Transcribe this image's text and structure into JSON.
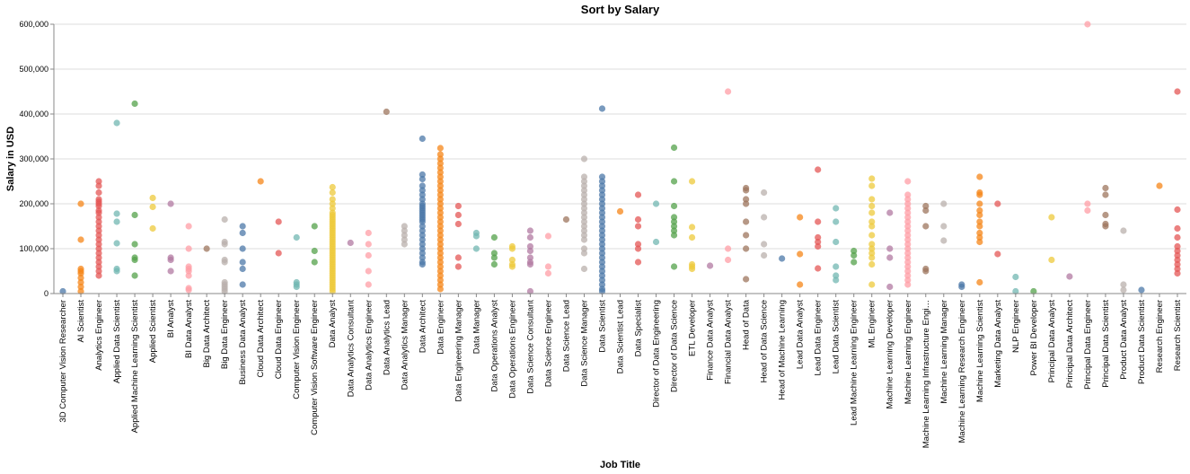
{
  "chart_data": {
    "type": "scatter",
    "title": "Sort by Salary",
    "xlabel": "Job Title",
    "ylabel": "Salary in USD",
    "ylim": [
      0,
      600000
    ],
    "yticks": [
      0,
      100000,
      200000,
      300000,
      400000,
      500000,
      600000
    ],
    "ytick_labels": [
      "0",
      "100,000",
      "200,000",
      "300,000",
      "400,000",
      "500,000",
      "600,000"
    ],
    "grid": true,
    "legend": "none",
    "categories": [
      "3D Computer Vision Researcher",
      "AI Scientist",
      "Analytics Engineer",
      "Applied Data Scientist",
      "Applied Machine Learning Scientist",
      "Applied Scientist",
      "BI Analyst",
      "BI Data Analyst",
      "Big Data Architect",
      "Big Data Engineer",
      "Business Data Analyst",
      "Cloud Data Architect",
      "Cloud Data Engineer",
      "Computer Vision Engineer",
      "Computer Vision Software Engineer",
      "Data Analyst",
      "Data Analytics Consultant",
      "Data Analytics Engineer",
      "Data Analytics Lead",
      "Data Analytics Manager",
      "Data Architect",
      "Data Engineer",
      "Data Engineering Manager",
      "Data Manager",
      "Data Operations Analyst",
      "Data Operations Engineer",
      "Data Science Consultant",
      "Data Science Engineer",
      "Data Science Lead",
      "Data Science Manager",
      "Data Scientist",
      "Data Scientist Lead",
      "Data Specialist",
      "Director of Data Engineering",
      "Director of Data Science",
      "ETL Developer",
      "Finance Data Analyst",
      "Financial Data Analyst",
      "Head of Data",
      "Head of Data Science",
      "Head of Machine Learning",
      "Lead Data Analyst",
      "Lead Data Engineer",
      "Lead Data Scientist",
      "Lead Machine Learning Engineer",
      "ML Engineer",
      "Machine Learning Developer",
      "Machine Learning Engineer",
      "Machine Learning Infrastructure Engi…",
      "Machine Learning Manager",
      "Machine Learning Research Engineer",
      "Machine Learning Scientist",
      "Marketing Data Analyst",
      "NLP Engineer",
      "Power BI Developer",
      "Principal Data Analyst",
      "Principal Data Architect",
      "Principal Data Engineer",
      "Principal Data Scientist",
      "Product Data Analyst",
      "Product Data Scientist",
      "Research Engineer",
      "Research Scientist"
    ],
    "colors": [
      "#4c78a8",
      "#f58518",
      "#e45756",
      "#72b7b2",
      "#54a24b",
      "#eeca3b",
      "#b279a2",
      "#ff9da6",
      "#9d755d",
      "#bab0ac"
    ],
    "points": [
      [
        5000
      ],
      [
        200000,
        120000,
        55000,
        50000,
        45000,
        35000,
        25000,
        15000,
        5000
      ],
      [
        250000,
        240000,
        225000,
        210000,
        205000,
        200000,
        195000,
        185000,
        180000,
        170000,
        160000,
        150000,
        140000,
        130000,
        120000,
        110000,
        100000,
        90000,
        80000,
        70000,
        60000,
        50000,
        40000
      ],
      [
        380000,
        178000,
        160000,
        112000,
        55000,
        50000
      ],
      [
        423000,
        175000,
        110000,
        80000,
        75000,
        40000
      ],
      [
        213000,
        193000,
        145000
      ],
      [
        200000,
        80000,
        75000,
        50000
      ],
      [
        150000,
        100000,
        60000,
        55000,
        50000,
        40000,
        12000,
        8000
      ],
      [
        100000
      ],
      [
        165000,
        115000,
        110000,
        75000,
        70000,
        25000,
        20000,
        15000,
        10000,
        5000
      ],
      [
        150000,
        135000,
        100000,
        70000,
        55000,
        20000
      ],
      [
        250000
      ],
      [
        160000,
        90000
      ],
      [
        125000,
        25000,
        20000,
        15000
      ],
      [
        150000,
        95000,
        70000
      ],
      [
        237000,
        225000,
        210000,
        200000,
        190000,
        180000,
        175000,
        170000,
        165000,
        160000,
        155000,
        150000,
        145000,
        140000,
        135000,
        130000,
        125000,
        120000,
        115000,
        110000,
        105000,
        100000,
        95000,
        90000,
        85000,
        80000,
        75000,
        70000,
        65000,
        60000,
        55000,
        50000,
        45000,
        40000,
        35000,
        30000,
        25000,
        20000,
        15000,
        10000,
        5000
      ],
      [
        113000
      ],
      [
        135000,
        110000,
        85000,
        50000,
        20000
      ],
      [
        405000
      ],
      [
        150000,
        140000,
        130000,
        120000,
        110000
      ],
      [
        345000,
        265000,
        255000,
        240000,
        230000,
        220000,
        210000,
        200000,
        195000,
        190000,
        185000,
        180000,
        175000,
        170000,
        165000,
        160000,
        150000,
        140000,
        130000,
        120000,
        110000,
        100000,
        90000,
        80000,
        70000,
        65000
      ],
      [
        324000,
        310000,
        300000,
        290000,
        280000,
        270000,
        260000,
        250000,
        240000,
        230000,
        220000,
        210000,
        200000,
        190000,
        180000,
        170000,
        160000,
        150000,
        140000,
        130000,
        120000,
        110000,
        100000,
        90000,
        80000,
        70000,
        60000,
        50000,
        40000,
        30000,
        20000,
        10000
      ],
      [
        195000,
        175000,
        155000,
        80000,
        60000
      ],
      [
        135000,
        128000,
        100000
      ],
      [
        125000,
        90000,
        80000,
        65000
      ],
      [
        105000,
        100000,
        75000,
        65000,
        60000
      ],
      [
        140000,
        125000,
        105000,
        95000,
        80000,
        70000,
        65000,
        5000
      ],
      [
        128000,
        60000,
        45000
      ],
      [
        165000
      ],
      [
        300000,
        260000,
        250000,
        240000,
        230000,
        220000,
        210000,
        200000,
        190000,
        180000,
        170000,
        160000,
        150000,
        140000,
        130000,
        120000,
        100000,
        90000,
        55000
      ],
      [
        412000,
        260000,
        250000,
        240000,
        230000,
        220000,
        210000,
        200000,
        190000,
        180000,
        170000,
        160000,
        150000,
        140000,
        130000,
        120000,
        110000,
        100000,
        90000,
        80000,
        70000,
        60000,
        50000,
        40000,
        30000,
        20000,
        10000,
        5000
      ],
      [
        183000
      ],
      [
        220000,
        165000,
        150000,
        110000,
        100000,
        70000
      ],
      [
        200000,
        115000
      ],
      [
        325000,
        250000,
        195000,
        170000,
        160000,
        150000,
        140000,
        130000,
        60000
      ],
      [
        250000,
        148000,
        125000,
        65000,
        60000,
        55000
      ],
      [
        62000
      ],
      [
        450000,
        100000,
        75000
      ],
      [
        235000,
        230000,
        210000,
        200000,
        160000,
        130000,
        100000,
        32000
      ],
      [
        225000,
        170000,
        110000,
        85000
      ],
      [
        78000
      ],
      [
        170000,
        88000,
        20000
      ],
      [
        276000,
        160000,
        125000,
        115000,
        105000,
        56000
      ],
      [
        190000,
        160000,
        115000,
        60000,
        40000,
        30000
      ],
      [
        95000,
        85000,
        70000
      ],
      [
        256000,
        240000,
        210000,
        195000,
        180000,
        160000,
        150000,
        130000,
        110000,
        100000,
        90000,
        80000,
        65000,
        20000
      ],
      [
        180000,
        100000,
        80000,
        15000
      ],
      [
        250000,
        220000,
        210000,
        200000,
        190000,
        180000,
        170000,
        160000,
        150000,
        140000,
        130000,
        120000,
        110000,
        100000,
        90000,
        80000,
        70000,
        60000,
        50000,
        40000,
        30000,
        20000
      ],
      [
        195000,
        185000,
        150000,
        55000,
        50000
      ],
      [
        200000,
        150000,
        118000
      ],
      [
        20000,
        15000
      ],
      [
        260000,
        225000,
        220000,
        200000,
        185000,
        175000,
        160000,
        150000,
        135000,
        125000,
        115000,
        25000
      ],
      [
        200000,
        88000
      ],
      [
        37000,
        5000
      ],
      [
        5000
      ],
      [
        170000,
        75000
      ],
      [
        38000
      ],
      [
        600000,
        200000,
        185000
      ],
      [
        235000,
        220000,
        175000,
        155000,
        150000
      ],
      [
        140000,
        20000,
        8000
      ],
      [
        8000
      ],
      [
        240000
      ],
      [
        450000,
        187000,
        145000,
        125000,
        105000,
        95000,
        85000,
        75000,
        65000,
        55000,
        45000
      ]
    ]
  }
}
